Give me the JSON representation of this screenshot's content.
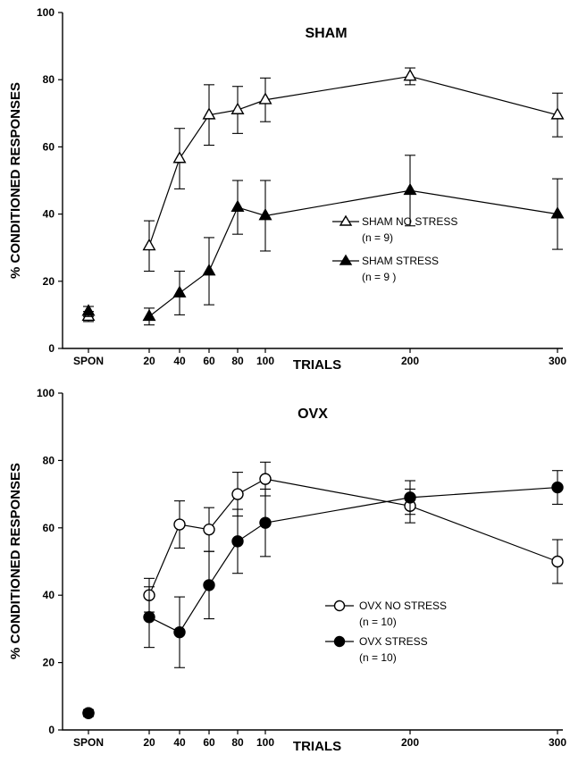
{
  "chart_data": [
    {
      "type": "line",
      "title": "SHAM",
      "xlabel": "TRIALS",
      "ylabel": "% CONDITIONED RESPONSES",
      "ylim": [
        0,
        100
      ],
      "yticks": [
        0,
        20,
        40,
        60,
        80,
        100
      ],
      "xticks": [
        "SPON",
        "20",
        "40",
        "60",
        "80",
        "100",
        "200",
        "300"
      ],
      "legend_position": "center-right",
      "series": [
        {
          "name": "SHAM NO STRESS",
          "n_label": "(n = 9)",
          "marker": "triangle-open",
          "spon": {
            "y": 9.5,
            "err": 1.5
          },
          "points": [
            {
              "x": 20,
              "y": 30.5,
              "err": 7.5
            },
            {
              "x": 40,
              "y": 56.5,
              "err": 9
            },
            {
              "x": 60,
              "y": 69.5,
              "err": 9
            },
            {
              "x": 80,
              "y": 71,
              "err": 7
            },
            {
              "x": 100,
              "y": 74,
              "err": 6.5
            },
            {
              "x": 200,
              "y": 81,
              "err": 2.5
            },
            {
              "x": 300,
              "y": 69.5,
              "err": 6.5
            }
          ]
        },
        {
          "name": "SHAM STRESS",
          "n_label": "(n = 9 )",
          "marker": "triangle-filled",
          "spon": {
            "y": 11,
            "err": 1.5
          },
          "points": [
            {
              "x": 20,
              "y": 9.5,
              "err": 2.5
            },
            {
              "x": 40,
              "y": 16.5,
              "err": 6.5
            },
            {
              "x": 60,
              "y": 23,
              "err": 10
            },
            {
              "x": 80,
              "y": 42,
              "err": 8
            },
            {
              "x": 100,
              "y": 39.5,
              "err": 10.5
            },
            {
              "x": 200,
              "y": 47,
              "err": 10.5
            },
            {
              "x": 300,
              "y": 40,
              "err": 10.5
            }
          ]
        }
      ]
    },
    {
      "type": "line",
      "title": "OVX",
      "xlabel": "TRIALS",
      "ylabel": "% CONDITIONED RESPONSES",
      "ylim": [
        0,
        100
      ],
      "yticks": [
        0,
        20,
        40,
        60,
        80,
        100
      ],
      "xticks": [
        "SPON",
        "20",
        "40",
        "60",
        "80",
        "100",
        "200",
        "300"
      ],
      "legend_position": "bottom-right",
      "series": [
        {
          "name": "OVX NO STRESS",
          "n_label": "(n = 10)",
          "marker": "circle-open",
          "spon": {
            "y": 5,
            "err": 1
          },
          "points": [
            {
              "x": 20,
              "y": 40,
              "err": 5
            },
            {
              "x": 40,
              "y": 61,
              "err": 7
            },
            {
              "x": 60,
              "y": 59.5,
              "err": 6.5
            },
            {
              "x": 80,
              "y": 70,
              "err": 6.5
            },
            {
              "x": 100,
              "y": 74.5,
              "err": 5
            },
            {
              "x": 200,
              "y": 66.5,
              "err": 5
            },
            {
              "x": 300,
              "y": 50,
              "err": 6.5
            }
          ]
        },
        {
          "name": "OVX STRESS",
          "n_label": "(n = 10)",
          "marker": "circle-filled",
          "spon": {
            "y": 5,
            "err": 1
          },
          "points": [
            {
              "x": 20,
              "y": 33.5,
              "err": 9
            },
            {
              "x": 40,
              "y": 29,
              "err": 10.5
            },
            {
              "x": 60,
              "y": 43,
              "err": 10
            },
            {
              "x": 80,
              "y": 56,
              "err": 9.5
            },
            {
              "x": 100,
              "y": 61.5,
              "err": 10
            },
            {
              "x": 200,
              "y": 69,
              "err": 5
            },
            {
              "x": 300,
              "y": 72,
              "err": 5
            }
          ]
        }
      ]
    }
  ]
}
